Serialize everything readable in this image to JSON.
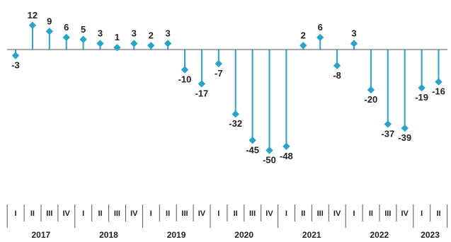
{
  "chart_data": {
    "type": "lollipop",
    "title": "",
    "xlabel": "",
    "ylabel": "",
    "ylim": [
      -55,
      15
    ],
    "grid": false,
    "legend": "none",
    "colors": {
      "marker": "#2aa3c9",
      "axis": "#555555",
      "text": "#222222"
    },
    "years": [
      {
        "label": "2017",
        "quarters": [
          "I",
          "II",
          "III",
          "IV"
        ]
      },
      {
        "label": "2018",
        "quarters": [
          "I",
          "II",
          "III",
          "IV"
        ]
      },
      {
        "label": "2019",
        "quarters": [
          "I",
          "II",
          "III",
          "IV"
        ]
      },
      {
        "label": "2020",
        "quarters": [
          "I",
          "II",
          "III",
          "IV"
        ]
      },
      {
        "label": "2021",
        "quarters": [
          "I",
          "II",
          "III",
          "IV"
        ]
      },
      {
        "label": "2022",
        "quarters": [
          "I",
          "II",
          "III",
          "IV"
        ]
      },
      {
        "label": "2023",
        "quarters": [
          "I",
          "II"
        ]
      }
    ],
    "values": [
      -3,
      12,
      9,
      6,
      5,
      3,
      1,
      3,
      2,
      3,
      -10,
      -17,
      -7,
      -32,
      -45,
      -50,
      -48,
      2,
      6,
      -8,
      3,
      -20,
      -37,
      -39,
      -19,
      -16
    ]
  }
}
